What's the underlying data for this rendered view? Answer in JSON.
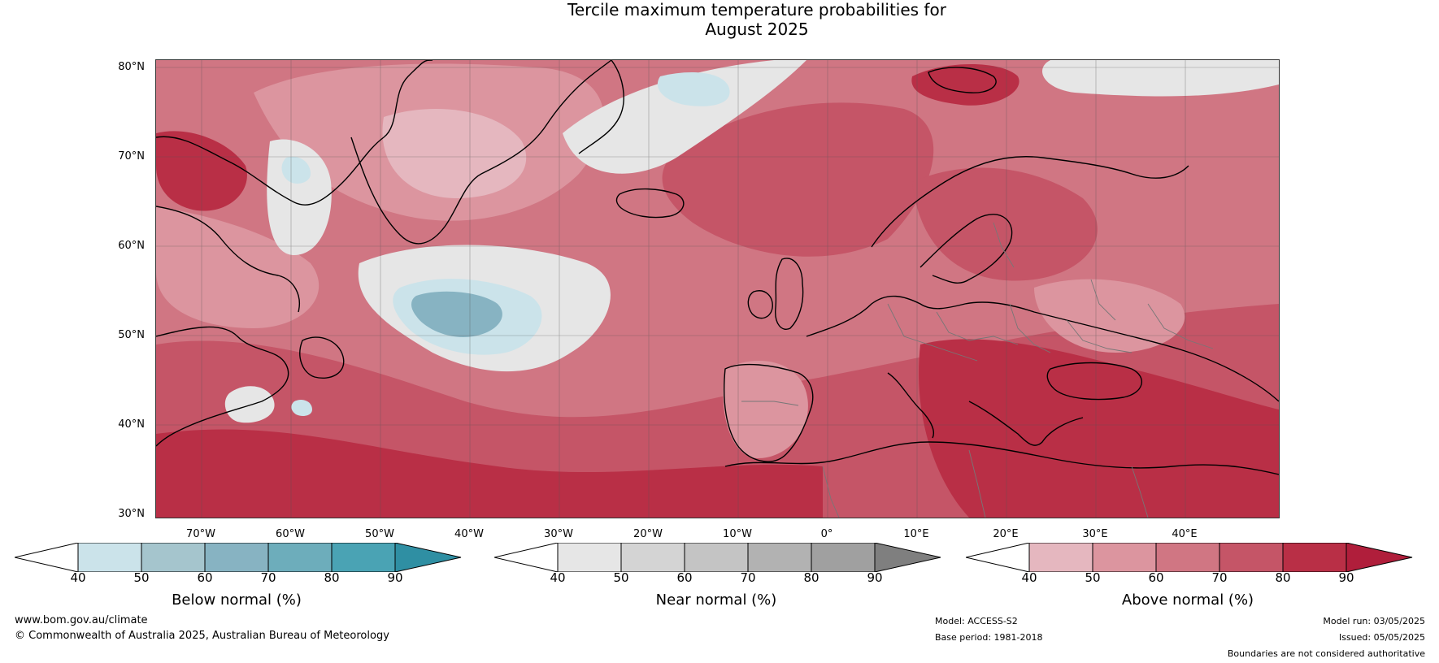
{
  "title_line1": "Tercile maximum temperature probabilities for",
  "title_line2": "August 2025",
  "lat_labels": [
    "80°N",
    "70°N",
    "60°N",
    "50°N",
    "40°N",
    "30°N"
  ],
  "lon_labels": [
    "70°W",
    "60°W",
    "50°W",
    "40°W",
    "30°W",
    "20°W",
    "10°W",
    "0°",
    "10°E",
    "20°E",
    "30°E",
    "40°E"
  ],
  "colorbars": [
    {
      "title": "Below normal (%)",
      "ticks": [
        "40",
        "50",
        "60",
        "70",
        "80",
        "90"
      ],
      "colors": [
        "#ffffff",
        "#cbe3ea",
        "#a5c5cd",
        "#87b3c2",
        "#6dadbb",
        "#4aa3b4",
        "#2f8fa3"
      ]
    },
    {
      "title": "Near normal (%)",
      "ticks": [
        "40",
        "50",
        "60",
        "70",
        "80",
        "90"
      ],
      "colors": [
        "#ffffff",
        "#e6e6e6",
        "#d4d4d4",
        "#c4c4c4",
        "#b2b2b2",
        "#a0a0a0",
        "#7f7f7f"
      ]
    },
    {
      "title": "Above normal (%)",
      "ticks": [
        "40",
        "50",
        "60",
        "70",
        "80",
        "90"
      ],
      "colors": [
        "#ffffff",
        "#e5b7bf",
        "#dc959f",
        "#d07683",
        "#c55567",
        "#b92f46",
        "#b01e3b"
      ]
    }
  ],
  "footer": {
    "website": "www.bom.gov.au/climate",
    "copyright": "© Commonwealth of Australia 2025, Australian Bureau of Meteorology",
    "model": "Model: ACCESS-S2",
    "base_period": "Base period: 1981-2018",
    "model_run": "Model run: 03/05/2025",
    "issued": "Issued: 05/05/2025",
    "disclaimer": "Boundaries are not considered authoritative"
  },
  "colors": {
    "above_light": "#e5b7bf",
    "above_mid": "#d07683",
    "above_dark": "#b92f46",
    "below_light": "#cbe3ea",
    "below_mid": "#87b3c2",
    "near_light": "#e6e6e6",
    "coastline": "#000000",
    "border": "#777777"
  }
}
